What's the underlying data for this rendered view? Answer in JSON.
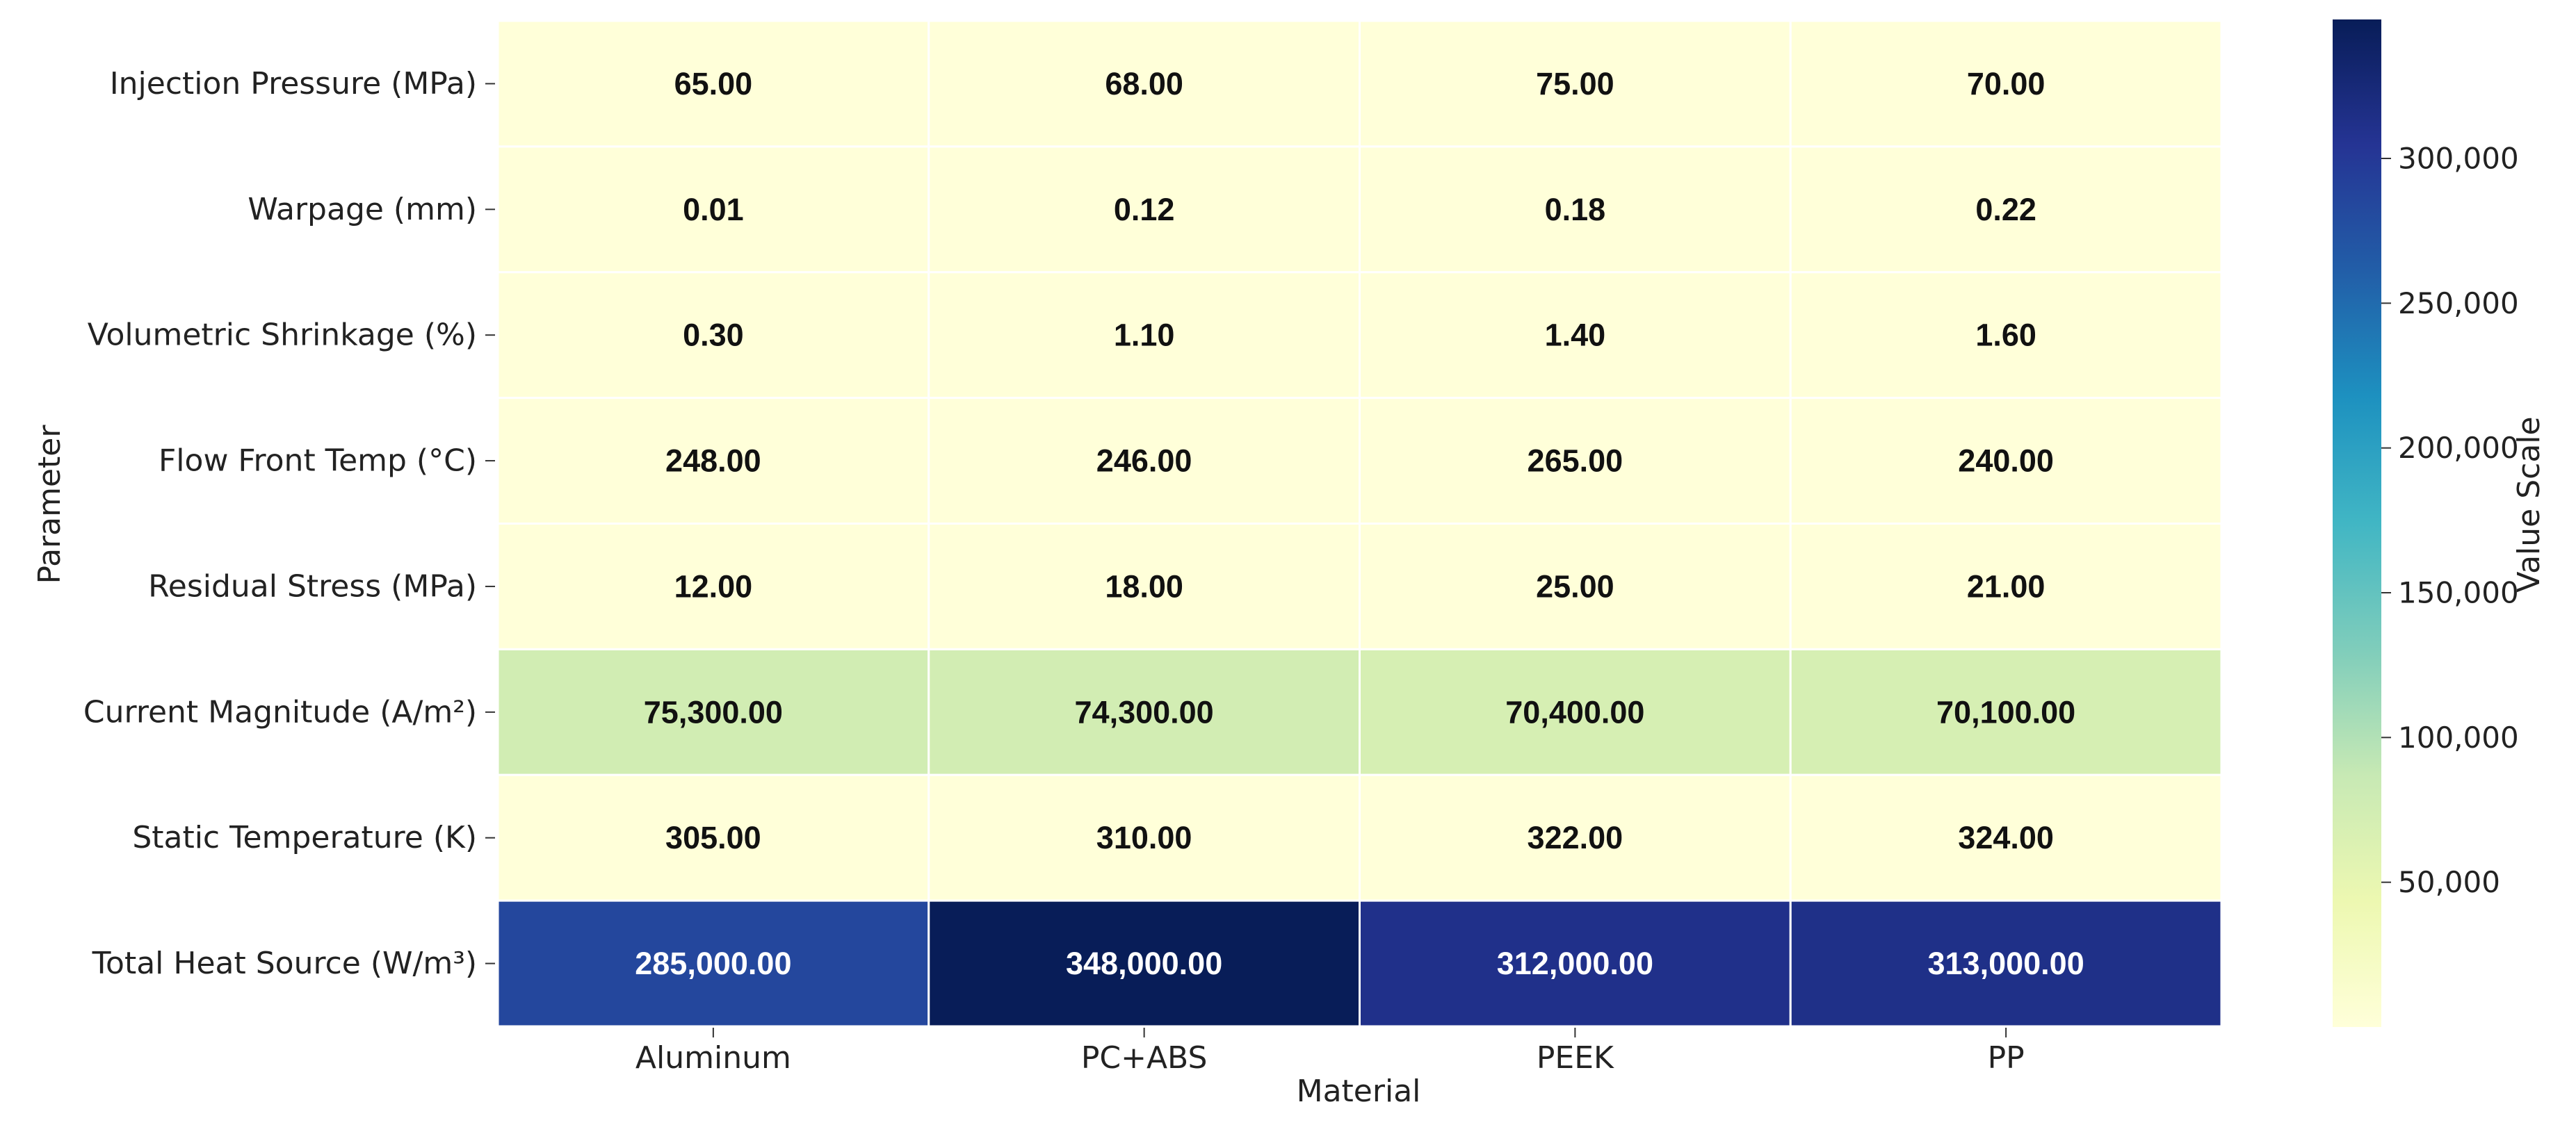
{
  "chart_data": {
    "type": "heatmap",
    "title": "",
    "xlabel": "Material",
    "ylabel": "Parameter",
    "x_categories": [
      "Aluminum",
      "PC+ABS",
      "PEEK",
      "PP"
    ],
    "y_categories": [
      "Injection Pressure (MPa)",
      "Warpage (mm)",
      "Volumetric Shrinkage (%)",
      "Flow Front Temp (°C)",
      "Residual Stress (MPa)",
      "Current Magnitude (A/m²)",
      "Static Temperature (K)",
      "Total Heat Source (W/m³)"
    ],
    "values": [
      [
        65.0,
        68.0,
        75.0,
        70.0
      ],
      [
        0.01,
        0.12,
        0.18,
        0.22
      ],
      [
        0.3,
        1.1,
        1.4,
        1.6
      ],
      [
        248.0,
        246.0,
        265.0,
        240.0
      ],
      [
        12.0,
        18.0,
        25.0,
        21.0
      ],
      [
        75300.0,
        74300.0,
        70400.0,
        70100.0
      ],
      [
        305.0,
        310.0,
        322.0,
        324.0
      ],
      [
        285000.0,
        348000.0,
        312000.0,
        313000.0
      ]
    ],
    "annotations": [
      [
        "65.00",
        "68.00",
        "75.00",
        "70.00"
      ],
      [
        "0.01",
        "0.12",
        "0.18",
        "0.22"
      ],
      [
        "0.30",
        "1.10",
        "1.40",
        "1.60"
      ],
      [
        "248.00",
        "246.00",
        "265.00",
        "240.00"
      ],
      [
        "12.00",
        "18.00",
        "25.00",
        "21.00"
      ],
      [
        "75,300.00",
        "74,300.00",
        "70,400.00",
        "70,100.00"
      ],
      [
        "305.00",
        "310.00",
        "322.00",
        "324.00"
      ],
      [
        "285,000.00",
        "348,000.00",
        "312,000.00",
        "313,000.00"
      ]
    ],
    "colormap": "YlGnBu",
    "colormap_stops": [
      "#ffffd9",
      "#edf8b1",
      "#c7e9b4",
      "#7fcdbb",
      "#41b6c4",
      "#1d91c0",
      "#225ea8",
      "#253494",
      "#081d58"
    ],
    "color_range": [
      0.01,
      348000
    ],
    "colorbar": {
      "label": "Value Scale",
      "ticks": [
        50000,
        100000,
        150000,
        200000,
        250000,
        300000
      ],
      "tick_labels": [
        "50,000",
        "100,000",
        "150,000",
        "200,000",
        "250,000",
        "300,000"
      ]
    },
    "grid": false,
    "legend": "colorbar-right"
  }
}
